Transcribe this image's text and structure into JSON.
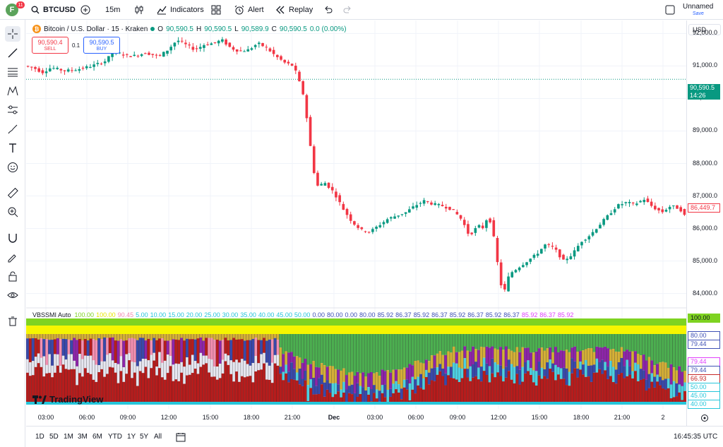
{
  "topbar": {
    "avatar_letter": "F",
    "avatar_badge": "11",
    "symbol": "BTCUSD",
    "interval": "15m",
    "indicators_label": "Indicators",
    "alert_label": "Alert",
    "replay_label": "Replay",
    "layout_name": "Unnamed",
    "save_label": "Save"
  },
  "legend": {
    "title": "Bitcoin / U.S. Dollar · 15 · Kraken",
    "o_label": "O",
    "o_value": "90,590.5",
    "h_label": "H",
    "h_value": "90,590.5",
    "l_label": "L",
    "l_value": "90,589.9",
    "c_label": "C",
    "c_value": "90,590.5",
    "change": "0.0 (0.00%)"
  },
  "trade": {
    "sell_price": "90,590.4",
    "sell_label": "SELL",
    "spread": "0.1",
    "buy_price": "90,590.5",
    "buy_label": "BUY"
  },
  "indicator": {
    "name": "VBSSMI Auto",
    "values": [
      {
        "text": "100.00",
        "color": "#7ed321"
      },
      {
        "text": "100.00",
        "color": "#e6e600"
      },
      {
        "text": "90.45",
        "color": "#f28cb1"
      },
      {
        "text": "5.00",
        "color": "#26c6da"
      },
      {
        "text": "10.00",
        "color": "#26c6da"
      },
      {
        "text": "15.00",
        "color": "#26c6da"
      },
      {
        "text": "20.00",
        "color": "#26c6da"
      },
      {
        "text": "25.00",
        "color": "#26c6da"
      },
      {
        "text": "30.00",
        "color": "#26c6da"
      },
      {
        "text": "35.00",
        "color": "#26c6da"
      },
      {
        "text": "40.00",
        "color": "#26c6da"
      },
      {
        "text": "45.00",
        "color": "#26c6da"
      },
      {
        "text": "50.00",
        "color": "#26c6da"
      },
      {
        "text": "0.00",
        "color": "#3f51b5"
      },
      {
        "text": "80.00",
        "color": "#3f51b5"
      },
      {
        "text": "0.00",
        "color": "#3f51b5"
      },
      {
        "text": "80.00",
        "color": "#3f51b5"
      },
      {
        "text": "85.92",
        "color": "#3f51b5"
      },
      {
        "text": "86.37",
        "color": "#3f51b5"
      },
      {
        "text": "85.92",
        "color": "#3f51b5"
      },
      {
        "text": "86.37",
        "color": "#3f51b5"
      },
      {
        "text": "85.92",
        "color": "#3f51b5"
      },
      {
        "text": "86.37",
        "color": "#3f51b5"
      },
      {
        "text": "85.92",
        "color": "#3f51b5"
      },
      {
        "text": "86.37",
        "color": "#3f51b5"
      },
      {
        "text": "85.92",
        "color": "#e040fb"
      },
      {
        "text": "86.37",
        "color": "#e040fb"
      },
      {
        "text": "85.92",
        "color": "#e040fb"
      }
    ],
    "scale_tags": [
      {
        "text": "100.00",
        "bg": "#7ed321",
        "fg": "#131722"
      },
      {
        "text": "80.00",
        "bg": "#ffffff",
        "fg": "#3f51b5"
      },
      {
        "text": "79.44",
        "bg": "#ffffff",
        "fg": "#3f51b5"
      },
      {
        "text": "79.44",
        "bg": "#ffffff",
        "fg": "#e040fb"
      },
      {
        "text": "79.44",
        "bg": "#ffffff",
        "fg": "#3f51b5"
      },
      {
        "text": "66.93",
        "bg": "#ffffff",
        "fg": "#c62828"
      },
      {
        "text": "50.00",
        "bg": "#ffffff",
        "fg": "#26c6da"
      },
      {
        "text": "45.00",
        "bg": "#ffffff",
        "fg": "#26c6da"
      },
      {
        "text": "40.00",
        "bg": "#ffffff",
        "fg": "#26c6da"
      }
    ]
  },
  "price_scale": {
    "currency": "USD",
    "labels": [
      "92,000.0",
      "91,000.0",
      "90,000.0",
      "89,000.0",
      "88,000.0",
      "87,000.0",
      "86,000.0",
      "85,000.0",
      "84,000.0"
    ],
    "last_price": "90,590.5",
    "countdown": "14:26",
    "low_tag": "86,449.7"
  },
  "time_axis": {
    "labels": [
      "03:00",
      "06:00",
      "09:00",
      "12:00",
      "15:00",
      "18:00",
      "21:00",
      "Dec",
      "03:00",
      "06:00",
      "09:00",
      "12:00",
      "15:00",
      "18:00",
      "21:00",
      "2"
    ]
  },
  "bottom": {
    "ranges": [
      "1D",
      "5D",
      "1M",
      "3M",
      "6M",
      "YTD",
      "1Y",
      "5Y",
      "All"
    ],
    "clock": "16:45:35 UTC"
  },
  "watermark": "TradingView",
  "colors": {
    "up": "#089981",
    "down": "#f23645",
    "accent": "#2962ff",
    "last_price_bg": "#089981"
  },
  "chart_data": {
    "type": "candlestick",
    "interval": "15m",
    "y_range": [
      83600,
      92400
    ],
    "price_path": [
      [
        0,
        91000
      ],
      [
        10,
        90950
      ],
      [
        20,
        90800
      ],
      [
        30,
        90950
      ],
      [
        45,
        90850
      ],
      [
        60,
        90900
      ],
      [
        75,
        91000
      ],
      [
        90,
        91150
      ],
      [
        100,
        91450
      ],
      [
        110,
        91350
      ],
      [
        120,
        91300
      ],
      [
        135,
        91400
      ],
      [
        150,
        91300
      ],
      [
        160,
        91500
      ],
      [
        170,
        91800
      ],
      [
        180,
        91650
      ],
      [
        190,
        91500
      ],
      [
        200,
        91650
      ],
      [
        210,
        91700
      ],
      [
        220,
        91800
      ],
      [
        230,
        91550
      ],
      [
        240,
        91450
      ],
      [
        250,
        91500
      ],
      [
        260,
        91700
      ],
      [
        270,
        91550
      ],
      [
        280,
        91300
      ],
      [
        290,
        91100
      ],
      [
        300,
        91000
      ],
      [
        305,
        90600
      ],
      [
        310,
        90200
      ],
      [
        315,
        89300
      ],
      [
        320,
        88200
      ],
      [
        325,
        87300
      ],
      [
        335,
        87400
      ],
      [
        345,
        87100
      ],
      [
        355,
        86600
      ],
      [
        365,
        86200
      ],
      [
        375,
        85950
      ],
      [
        385,
        85900
      ],
      [
        395,
        86100
      ],
      [
        405,
        86300
      ],
      [
        415,
        86400
      ],
      [
        425,
        86500
      ],
      [
        435,
        86700
      ],
      [
        445,
        86850
      ],
      [
        455,
        86750
      ],
      [
        465,
        86700
      ],
      [
        475,
        86600
      ],
      [
        485,
        86350
      ],
      [
        490,
        86100
      ],
      [
        495,
        85800
      ],
      [
        500,
        85900
      ],
      [
        505,
        86100
      ],
      [
        510,
        86000
      ],
      [
        515,
        86300
      ],
      [
        520,
        86200
      ],
      [
        525,
        85300
      ],
      [
        530,
        84300
      ],
      [
        535,
        84100
      ],
      [
        540,
        84600
      ],
      [
        550,
        84800
      ],
      [
        560,
        85000
      ],
      [
        570,
        85200
      ],
      [
        580,
        85500
      ],
      [
        590,
        85400
      ],
      [
        600,
        85000
      ],
      [
        610,
        85200
      ],
      [
        620,
        85600
      ],
      [
        630,
        85800
      ],
      [
        640,
        86100
      ],
      [
        650,
        86400
      ],
      [
        660,
        86700
      ],
      [
        670,
        86800
      ],
      [
        680,
        86750
      ],
      [
        690,
        86900
      ],
      [
        700,
        86650
      ],
      [
        710,
        86500
      ],
      [
        720,
        86700
      ],
      [
        730,
        86600
      ],
      [
        735,
        86400
      ]
    ],
    "x_labels": [
      "03:00",
      "06:00",
      "09:00",
      "12:00",
      "15:00",
      "18:00",
      "21:00",
      "Dec",
      "03:00",
      "06:00",
      "09:00",
      "12:00",
      "15:00",
      "18:00",
      "21:00",
      "2"
    ]
  }
}
